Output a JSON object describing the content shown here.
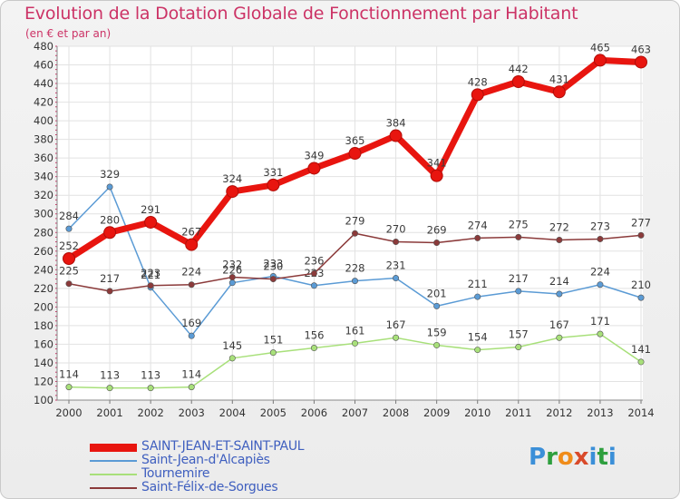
{
  "title": "Evolution de la Dotation Globale de Fonctionnement par Habitant",
  "subtitle": "(en € et par an)",
  "brand": {
    "letters": [
      "P",
      "r",
      "o",
      "x",
      "i",
      "t",
      "i"
    ],
    "colors": [
      "#3b8fd8",
      "#2e9f3e",
      "#f08c1a",
      "#d94a2a",
      "#3b8fd8",
      "#2e9f3e",
      "#3b8fd8"
    ]
  },
  "chart_data": {
    "type": "line",
    "title": "Evolution de la Dotation Globale de Fonctionnement par Habitant",
    "subtitle": "(en € et par an)",
    "xlabel": "",
    "ylabel": "",
    "ylim": [
      100,
      480
    ],
    "ytick_step": 20,
    "grid": true,
    "legend_position": "bottom-left",
    "categories": [
      "2000",
      "2001",
      "2002",
      "2003",
      "2004",
      "2005",
      "2006",
      "2007",
      "2008",
      "2009",
      "2010",
      "2011",
      "2012",
      "2013",
      "2014"
    ],
    "series": [
      {
        "name": "SAINT-JEAN-ET-SAINT-PAUL",
        "color": "#e8150f",
        "emphasis": true,
        "values": [
          252,
          280,
          291,
          267,
          324,
          331,
          349,
          365,
          384,
          341,
          428,
          442,
          431,
          465,
          463
        ]
      },
      {
        "name": "Saint-Jean-d'Alcapiès",
        "color": "#5b9bd5",
        "emphasis": false,
        "values": [
          284,
          329,
          221,
          169,
          226,
          233,
          223,
          228,
          231,
          201,
          211,
          217,
          214,
          224,
          210
        ]
      },
      {
        "name": "Tournemire",
        "color": "#a8e07a",
        "emphasis": false,
        "values": [
          114,
          113,
          113,
          114,
          145,
          151,
          156,
          161,
          167,
          159,
          154,
          157,
          167,
          171,
          141
        ]
      },
      {
        "name": "Saint-Félix-de-Sorgues",
        "color": "#8b3a3a",
        "emphasis": false,
        "values": [
          225,
          217,
          223,
          224,
          232,
          230,
          236,
          279,
          270,
          269,
          274,
          275,
          272,
          273,
          277
        ]
      }
    ]
  }
}
